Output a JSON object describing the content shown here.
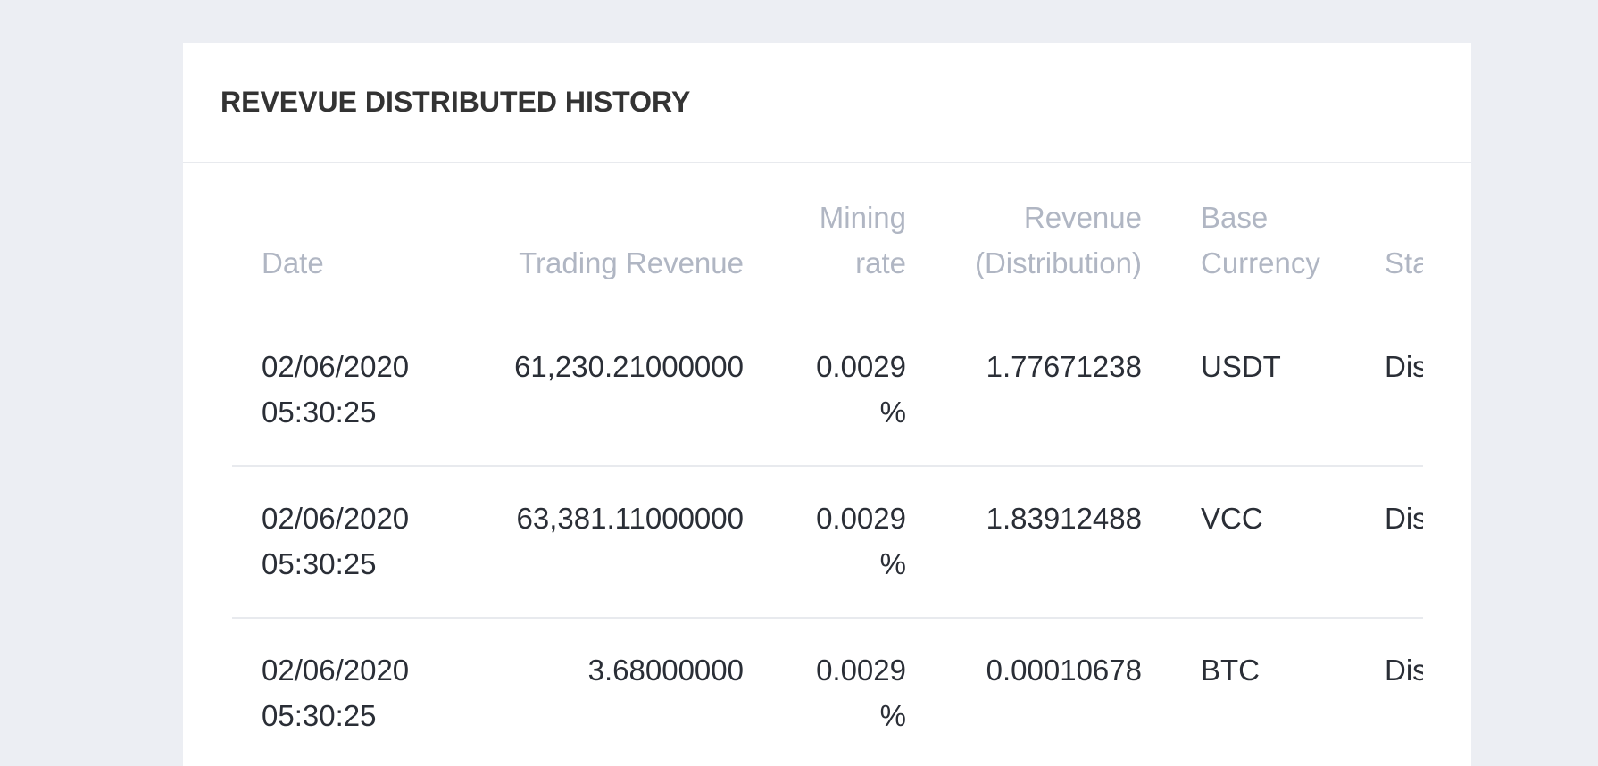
{
  "header": {
    "title": "REVEVUE DISTRIBUTED HISTORY"
  },
  "table": {
    "columns": [
      "Date",
      "Trading Revenue",
      "Mining rate",
      "Revenue (Distribution)",
      "Base Currency",
      "Sta"
    ],
    "rows": [
      [
        "02/06/2020 05:30:25",
        "61,230.21000000",
        "0.0029 %",
        "1.77671238",
        "USDT",
        "Dis"
      ],
      [
        "02/06/2020 05:30:25",
        "63,381.11000000",
        "0.0029 %",
        "1.83912488",
        "VCC",
        "Dis"
      ],
      [
        "02/06/2020 05:30:25",
        "3.68000000",
        "0.0029 %",
        "0.00010678",
        "BTC",
        "Dis"
      ]
    ]
  }
}
